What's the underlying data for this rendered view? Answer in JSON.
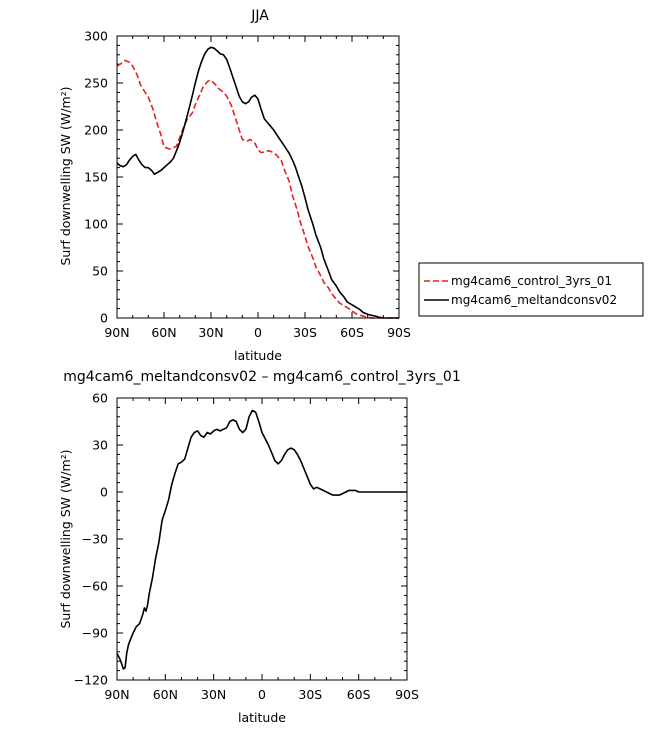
{
  "chart_data": [
    {
      "type": "line",
      "title": "JJA",
      "xlabel": "latitude",
      "ylabel": "Surf downwelling SW (W/m²)",
      "xlim": [
        90,
        -90
      ],
      "ylim": [
        0,
        300
      ],
      "x_ticks": [
        "90N",
        "60N",
        "30N",
        "0",
        "30S",
        "60S",
        "90S"
      ],
      "y_ticks": [
        "0",
        "50",
        "100",
        "150",
        "200",
        "250",
        "300"
      ],
      "legend_position": "right",
      "series": [
        {
          "name": "mg4cam6_control_3yrs_01",
          "color": "#e8201a",
          "dash": "dashed",
          "x": [
            90,
            88,
            85,
            82,
            80,
            77,
            75,
            72,
            70,
            67,
            65,
            62,
            60,
            57,
            55,
            52,
            50,
            47,
            45,
            42,
            40,
            37,
            35,
            32,
            30,
            27,
            25,
            22,
            20,
            17,
            15,
            12,
            10,
            7,
            5,
            2,
            0,
            -2,
            -5,
            -7,
            -10,
            -12,
            -15,
            -17,
            -20,
            -22,
            -25,
            -27,
            -30,
            -32,
            -35,
            -37,
            -40,
            -42,
            -45,
            -47,
            -50,
            -52,
            -55,
            -57,
            -60,
            -62,
            -65,
            -67,
            -70,
            -72,
            -75,
            -77,
            -80,
            -83,
            -85,
            -87,
            -90
          ],
          "y": [
            268,
            270,
            274,
            272,
            268,
            258,
            248,
            240,
            235,
            222,
            210,
            195,
            182,
            180,
            180,
            183,
            192,
            205,
            212,
            218,
            227,
            238,
            246,
            252,
            253,
            248,
            244,
            240,
            236,
            226,
            216,
            200,
            190,
            188,
            190,
            186,
            179,
            176,
            177,
            178,
            176,
            173,
            167,
            157,
            145,
            130,
            115,
            102,
            87,
            76,
            64,
            54,
            45,
            38,
            32,
            26,
            20,
            16,
            13,
            11,
            8,
            5,
            3,
            2,
            1,
            0,
            0,
            0,
            0,
            0,
            0,
            0,
            0
          ]
        },
        {
          "name": "mg4cam6_meltandconsv02",
          "color": "#000000",
          "dash": "solid",
          "x": [
            90,
            88,
            86,
            84,
            82,
            80,
            78,
            76,
            74,
            72,
            70,
            68,
            66,
            64,
            62,
            60,
            58,
            56,
            54,
            52,
            50,
            48,
            46,
            44,
            42,
            40,
            38,
            36,
            34,
            32,
            30,
            28,
            26,
            24,
            22,
            20,
            18,
            16,
            14,
            12,
            10,
            8,
            6,
            4,
            2,
            0,
            -2,
            -4,
            -6,
            -8,
            -10,
            -12,
            -14,
            -16,
            -18,
            -20,
            -22,
            -24,
            -26,
            -28,
            -30,
            -32,
            -35,
            -37,
            -40,
            -42,
            -45,
            -47,
            -50,
            -52,
            -55,
            -57,
            -60,
            -62,
            -65,
            -67,
            -70,
            -72,
            -75,
            -77,
            -80,
            -83,
            -85,
            -87,
            -90
          ],
          "y": [
            165,
            162,
            161,
            163,
            168,
            172,
            174,
            168,
            163,
            160,
            160,
            157,
            153,
            155,
            157,
            160,
            163,
            166,
            170,
            178,
            187,
            198,
            210,
            223,
            236,
            250,
            263,
            273,
            281,
            286,
            288,
            287,
            284,
            281,
            280,
            275,
            266,
            256,
            246,
            236,
            230,
            228,
            230,
            235,
            237,
            233,
            222,
            212,
            208,
            204,
            200,
            195,
            190,
            185,
            180,
            175,
            168,
            160,
            150,
            140,
            128,
            115,
            100,
            88,
            75,
            63,
            50,
            41,
            34,
            28,
            22,
            17,
            14,
            12,
            9,
            6,
            4,
            3,
            2,
            1,
            0,
            0,
            0,
            0,
            0
          ]
        }
      ]
    },
    {
      "type": "line",
      "title": "mg4cam6_meltandconsv02 – mg4cam6_control_3yrs_01",
      "xlabel": "latitude",
      "ylabel": "Surf downwelling SW (W/m²)",
      "xlim": [
        90,
        -90
      ],
      "ylim": [
        -120,
        60
      ],
      "x_ticks": [
        "90N",
        "60N",
        "30N",
        "0",
        "30S",
        "60S",
        "90S"
      ],
      "y_ticks": [
        "-120",
        "-90",
        "-60",
        "-30",
        "0",
        "30",
        "60"
      ],
      "series": [
        {
          "color": "#000000",
          "dash": "solid",
          "x": [
            90,
            88,
            87,
            86,
            85,
            84,
            83,
            82,
            80,
            78,
            76,
            74,
            73,
            72,
            71,
            70,
            68,
            66,
            64,
            62,
            60,
            58,
            56,
            54,
            52,
            50,
            48,
            46,
            44,
            42,
            40,
            38,
            36,
            34,
            32,
            30,
            28,
            26,
            24,
            22,
            20,
            18,
            16,
            14,
            12,
            10,
            8,
            6,
            4,
            2,
            0,
            -2,
            -4,
            -6,
            -8,
            -10,
            -12,
            -14,
            -16,
            -18,
            -20,
            -22,
            -24,
            -26,
            -28,
            -30,
            -32,
            -34,
            -36,
            -38,
            -40,
            -42,
            -44,
            -46,
            -48,
            -50,
            -52,
            -54,
            -56,
            -58,
            -60,
            -62,
            -64,
            -66,
            -68,
            -70,
            -72,
            -75,
            -78,
            -80,
            -83,
            -85,
            -88,
            -90
          ],
          "y": [
            -103,
            -107,
            -110,
            -113,
            -112,
            -103,
            -98,
            -95,
            -90,
            -86,
            -84,
            -78,
            -74,
            -76,
            -72,
            -65,
            -55,
            -42,
            -32,
            -18,
            -12,
            -5,
            5,
            12,
            18,
            19,
            21,
            28,
            35,
            38,
            39,
            36,
            35,
            38,
            37,
            39,
            40,
            39,
            40,
            41,
            45,
            46,
            45,
            40,
            38,
            40,
            48,
            52,
            51,
            45,
            38,
            34,
            30,
            25,
            20,
            18,
            20,
            24,
            27,
            28,
            27,
            24,
            20,
            15,
            10,
            5,
            2,
            3,
            2,
            1,
            0,
            -1,
            -2,
            -2,
            -2,
            -1,
            0,
            1,
            1,
            1,
            0,
            0,
            0,
            0,
            0,
            0,
            0,
            0,
            0,
            0,
            0,
            0,
            0,
            0
          ]
        }
      ]
    }
  ]
}
